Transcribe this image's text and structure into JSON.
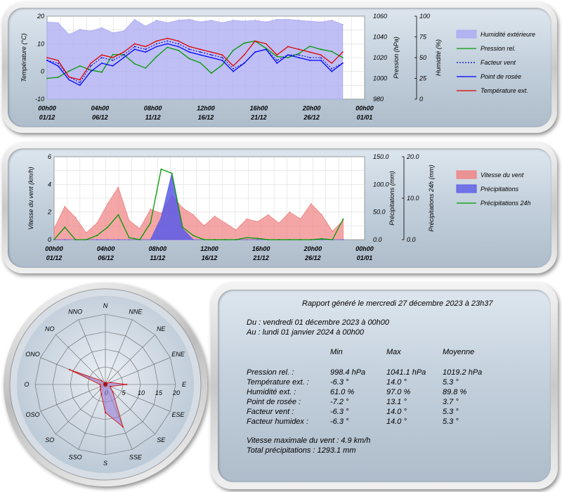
{
  "colors": {
    "humidity": "#a9aaf2",
    "pressure": "#009900",
    "windchill": "#0000cc",
    "dewpoint": "#0000ff",
    "temperature": "#dd0000",
    "wind_speed": "#f08080",
    "precip": "#5a5ae6",
    "precip24": "#009900",
    "rose_fill": "#9a7fd6",
    "rose_stroke": "#cc2222"
  },
  "chart_data": [
    {
      "type": "line",
      "y_left": {
        "label": "Température (°C)",
        "ticks": [
          "20",
          "10",
          "0",
          "-10"
        ],
        "range": [
          -10,
          20
        ]
      },
      "y_right1": {
        "label": "Pression (hPa)",
        "ticks": [
          "1060",
          "1040",
          "1020",
          "1000",
          "980"
        ],
        "range": [
          980,
          1060
        ]
      },
      "y_right2": {
        "label": "Humidité (%)",
        "ticks": [
          "100",
          "75",
          "50",
          "25",
          "0"
        ],
        "range": [
          0,
          100
        ]
      },
      "x_ticks": [
        {
          "time": "00h00",
          "date": "01/12"
        },
        {
          "time": "04h00",
          "date": "06/12"
        },
        {
          "time": "08h00",
          "date": "11/12"
        },
        {
          "time": "12h00",
          "date": "16/12"
        },
        {
          "time": "16h00",
          "date": "21/12"
        },
        {
          "time": "20h00",
          "date": "26/12"
        },
        {
          "time": "00h00",
          "date": "01/01"
        }
      ],
      "x": [
        1,
        2,
        3,
        4,
        5,
        6,
        7,
        8,
        9,
        10,
        11,
        12,
        13,
        14,
        15,
        16,
        17,
        18,
        19,
        20,
        21,
        22,
        23,
        24,
        25,
        26,
        27,
        28
      ],
      "series": [
        {
          "name": "Humidité extérieure",
          "kind": "area",
          "axis": "hum",
          "values": [
            93,
            92,
            78,
            84,
            82,
            86,
            80,
            82,
            96,
            88,
            95,
            92,
            95,
            96,
            93,
            95,
            92,
            95,
            94,
            95,
            93,
            96,
            96,
            95,
            94,
            93,
            95,
            90
          ]
        },
        {
          "name": "Pression rel.",
          "kind": "line",
          "axis": "press",
          "values": [
            1000,
            1001,
            1007,
            1012,
            1008,
            1006,
            1023,
            1023,
            1014,
            1010,
            1021,
            1030,
            1027,
            1019,
            1015,
            1005,
            1013,
            1027,
            1034,
            1036,
            1029,
            1021,
            1020,
            1024,
            1031,
            1028,
            1026,
            1020
          ]
        },
        {
          "name": "Facteur vent",
          "kind": "dotted",
          "axis": "temp",
          "values": [
            4,
            3,
            -2,
            -4,
            2,
            5,
            4,
            6,
            9,
            8,
            10,
            11,
            10,
            8,
            7,
            6,
            5,
            1,
            3,
            7,
            8,
            4,
            6,
            6,
            5,
            5,
            1,
            3
          ]
        },
        {
          "name": "Point de rosée",
          "kind": "line",
          "axis": "temp",
          "values": [
            4,
            2,
            -3,
            -5,
            0,
            3,
            2,
            5,
            8,
            7,
            9,
            10,
            9,
            7,
            6,
            5,
            4,
            0,
            3,
            7,
            8,
            3,
            6,
            5,
            4,
            4,
            0,
            3
          ]
        },
        {
          "name": "Température ext.",
          "kind": "line",
          "axis": "temp",
          "values": [
            5,
            4,
            -2,
            -3,
            3,
            6,
            5,
            7,
            10,
            9,
            11,
            12,
            11,
            9,
            8,
            7,
            6,
            2,
            6,
            11,
            10,
            6,
            9,
            8,
            7,
            6,
            3,
            7
          ]
        }
      ]
    },
    {
      "type": "area",
      "y_left": {
        "label": "Vitesse du vent (km/h)",
        "ticks": [
          "6",
          "4",
          "2",
          "0"
        ],
        "range": [
          0,
          6
        ]
      },
      "y_right1": {
        "label": "Précipitations (mm)",
        "ticks": [
          "150.0",
          "100.0",
          "50.0",
          "0.0"
        ],
        "range": [
          0,
          150
        ]
      },
      "y_right2": {
        "label": "Précipitations 24h (mm)",
        "ticks": [
          "20.0",
          "10.0",
          "0.0"
        ],
        "range": [
          0,
          20
        ]
      },
      "x_ticks": [
        {
          "time": "00h00",
          "date": "01/12"
        },
        {
          "time": "04h00",
          "date": "06/12"
        },
        {
          "time": "08h00",
          "date": "11/12"
        },
        {
          "time": "12h00",
          "date": "16/12"
        },
        {
          "time": "16h00",
          "date": "21/12"
        },
        {
          "time": "20h00",
          "date": "26/12"
        },
        {
          "time": "00h00",
          "date": "01/01"
        }
      ],
      "x": [
        1,
        2,
        3,
        4,
        5,
        6,
        7,
        8,
        9,
        10,
        11,
        12,
        13,
        14,
        15,
        16,
        17,
        18,
        19,
        20,
        21,
        22,
        23,
        24,
        25,
        26,
        27,
        28
      ],
      "series": [
        {
          "name": "Vitesse du vent",
          "kind": "area",
          "axis": "wind",
          "values": [
            0.8,
            2.4,
            1.6,
            0.5,
            1.2,
            2.6,
            3.8,
            1.4,
            0.8,
            2.2,
            1.9,
            3.2,
            2.3,
            1.8,
            1.0,
            1.7,
            1.2,
            0.7,
            1.5,
            1.3,
            1.8,
            1.2,
            2.0,
            1.5,
            2.6,
            1.8,
            0.6,
            1.4
          ]
        },
        {
          "name": "Précipitations",
          "kind": "area",
          "axis": "precip",
          "values": [
            0,
            0,
            0,
            0,
            0,
            0,
            0,
            0,
            0,
            0,
            40,
            120,
            20,
            0,
            0,
            0,
            0,
            0,
            0,
            0,
            0,
            0,
            0,
            0,
            0,
            0,
            0,
            0
          ]
        },
        {
          "name": "Précipitations 24h",
          "kind": "line",
          "axis": "precip24",
          "values": [
            0,
            3,
            0,
            0,
            1,
            3,
            6,
            0.5,
            0,
            4,
            17,
            16,
            3,
            1,
            0,
            0,
            0,
            0,
            0.5,
            0.3,
            0,
            0,
            0,
            0,
            0,
            0.2,
            0,
            5
          ]
        }
      ]
    },
    {
      "type": "radar",
      "directions": [
        "N",
        "NNE",
        "NE",
        "ENE",
        "E",
        "ESE",
        "SE",
        "SSE",
        "S",
        "SSO",
        "SO",
        "OSO",
        "O",
        "ONO",
        "NO",
        "NNO"
      ],
      "ring_labels": [
        "0",
        "5",
        "10",
        "15",
        "20"
      ],
      "range": [
        0,
        20
      ],
      "values": [
        0.5,
        0.5,
        0.5,
        1.5,
        6,
        1.5,
        3,
        13,
        8,
        3,
        2,
        1.5,
        1.5,
        11,
        1.5,
        0.5
      ]
    }
  ],
  "report": {
    "header": "Rapport généré le mercredi 27 décembre 2023 à 23h37",
    "from": "Du : vendredi 01 décembre 2023 à 00h00",
    "to": "Au : lundi 01 janvier 2024 à 00h00",
    "columns": [
      "Min",
      "Max",
      "Moyenne"
    ],
    "rows": [
      {
        "label": "Pression rel. :",
        "min": "998.4 hPa",
        "max": "1041.1 hPa",
        "avg": "1019.2 hPa"
      },
      {
        "label": "Température ext. :",
        "min": "-6.3 °",
        "max": "14.0 °",
        "avg": "5.3 °"
      },
      {
        "label": "Humidité ext. :",
        "min": "61.0 %",
        "max": "97.0 %",
        "avg": "89.8 %"
      },
      {
        "label": "Point de rosée :",
        "min": "-7.2 °",
        "max": "13.1 °",
        "avg": "3.7 °"
      },
      {
        "label": "Facteur vent :",
        "min": "-6.3 °",
        "max": "14.0 °",
        "avg": "5.3 °"
      },
      {
        "label": "Facteur humidex :",
        "min": "-6.3 °",
        "max": "14.0 °",
        "avg": "5.3 °"
      }
    ],
    "wind_max": "Vitesse maximale du vent : 4.9 km/h",
    "precip_total": "Total précipitations : 1293.1 mm"
  }
}
